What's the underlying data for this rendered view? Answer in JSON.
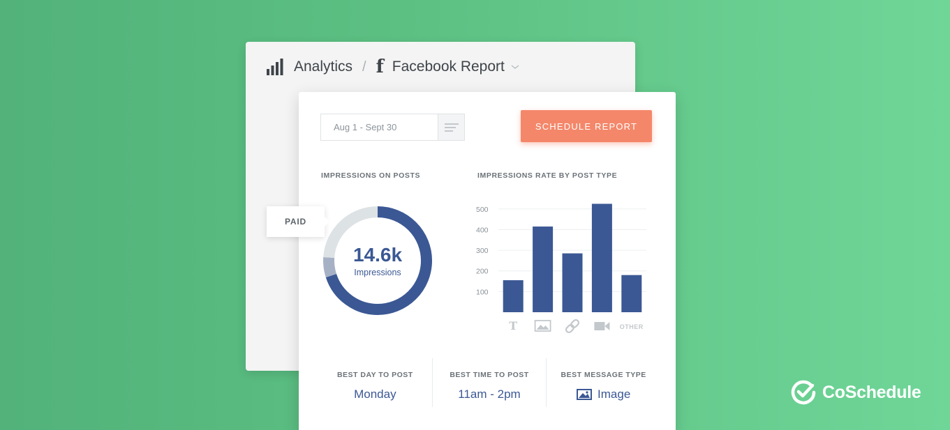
{
  "breadcrumb": {
    "section": "Analytics",
    "separator": "/",
    "report": "Facebook Report"
  },
  "toolbar": {
    "date_range": "Aug 1 - Sept 30",
    "schedule_label": "SCHEDULE REPORT"
  },
  "impressions": {
    "title": "IMPRESSIONS ON POSTS",
    "value": "14.6k",
    "label": "Impressions",
    "tooltip": "PAID"
  },
  "post_type_chart": {
    "title": "IMPRESSIONS RATE BY POST TYPE"
  },
  "chart_data": [
    {
      "type": "pie",
      "title": "IMPRESSIONS ON POSTS",
      "center_value": "14.6k",
      "center_label": "Impressions",
      "slices": [
        {
          "name": "",
          "value": 0.7,
          "color": "#3b5894"
        },
        {
          "name": "PAID",
          "value": 0.06,
          "color": "#a7b1c6"
        },
        {
          "name": "",
          "value": 0.24,
          "color": "#dde2e5"
        }
      ]
    },
    {
      "type": "bar",
      "title": "IMPRESSIONS RATE BY POST TYPE",
      "categories": [
        "text-icon",
        "image-icon",
        "link-icon",
        "video-icon",
        "OTHER"
      ],
      "values": [
        155,
        415,
        285,
        525,
        180
      ],
      "yticks": [
        100,
        200,
        300,
        400,
        500
      ],
      "ylim": [
        0,
        540
      ],
      "grid": true,
      "color": "#3b5894"
    }
  ],
  "stats": [
    {
      "label": "BEST DAY TO POST",
      "value": "Monday"
    },
    {
      "label": "BEST TIME TO POST",
      "value": "11am - 2pm"
    },
    {
      "label": "BEST MESSAGE TYPE",
      "value": "Image",
      "icon": "image-icon"
    }
  ],
  "brand": {
    "name": "CoSchedule"
  },
  "colors": {
    "accent": "#3b5894",
    "button": "#f4876a",
    "background": "#5cbf82"
  }
}
